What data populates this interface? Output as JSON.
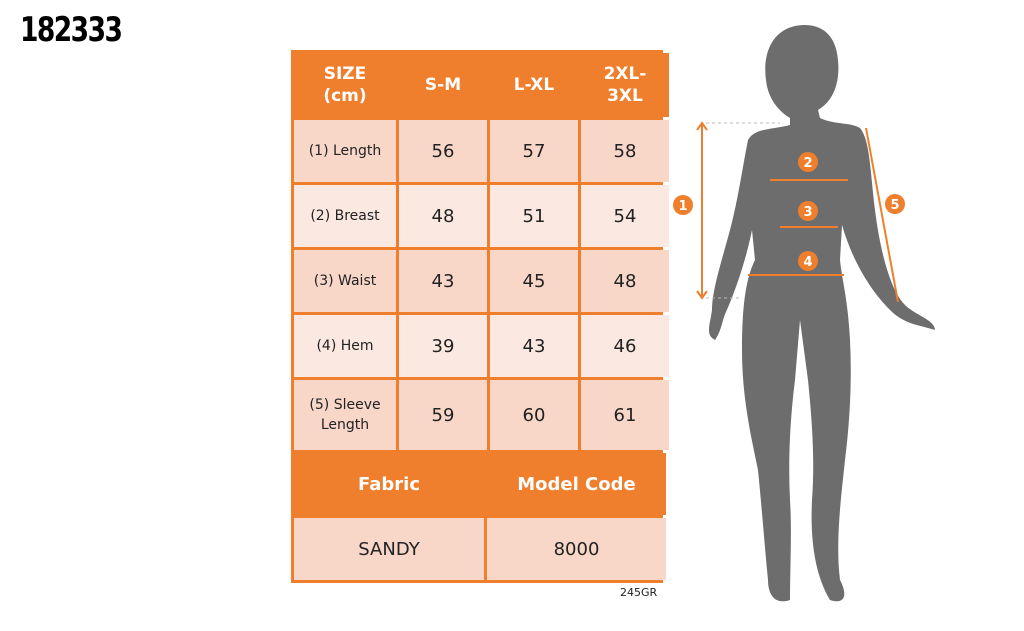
{
  "product_code": "182333",
  "size_table": {
    "headers": [
      "SIZE\n(cm)",
      "S-M",
      "L-XL",
      "2XL-\n3XL"
    ],
    "header_lines": [
      [
        "SIZE",
        "(cm)"
      ],
      [
        "S-M"
      ],
      [
        "L-XL"
      ],
      [
        "2XL-",
        "3XL"
      ]
    ],
    "rows": [
      {
        "label": "(1) Length",
        "values": [
          "56",
          "57",
          "58"
        ]
      },
      {
        "label": "(2) Breast",
        "values": [
          "48",
          "51",
          "54"
        ]
      },
      {
        "label": "(3) Waist",
        "values": [
          "43",
          "45",
          "48"
        ]
      },
      {
        "label": "(4) Hem",
        "values": [
          "39",
          "43",
          "46"
        ]
      },
      {
        "label_lines": [
          "(5) Sleeve",
          "Length"
        ],
        "values": [
          "59",
          "60",
          "61"
        ]
      }
    ]
  },
  "info_table": {
    "headers": [
      "Fabric",
      "Model Code"
    ],
    "values": [
      "SANDY",
      "8000"
    ]
  },
  "reference": "245GR",
  "figure": {
    "markers": [
      "1",
      "2",
      "3",
      "4",
      "5"
    ]
  },
  "colors": {
    "accent": "#ef7f2d",
    "row_dark": "#f8d7c9",
    "row_light": "#fbe9e1",
    "silhouette": "#6d6d6d"
  }
}
